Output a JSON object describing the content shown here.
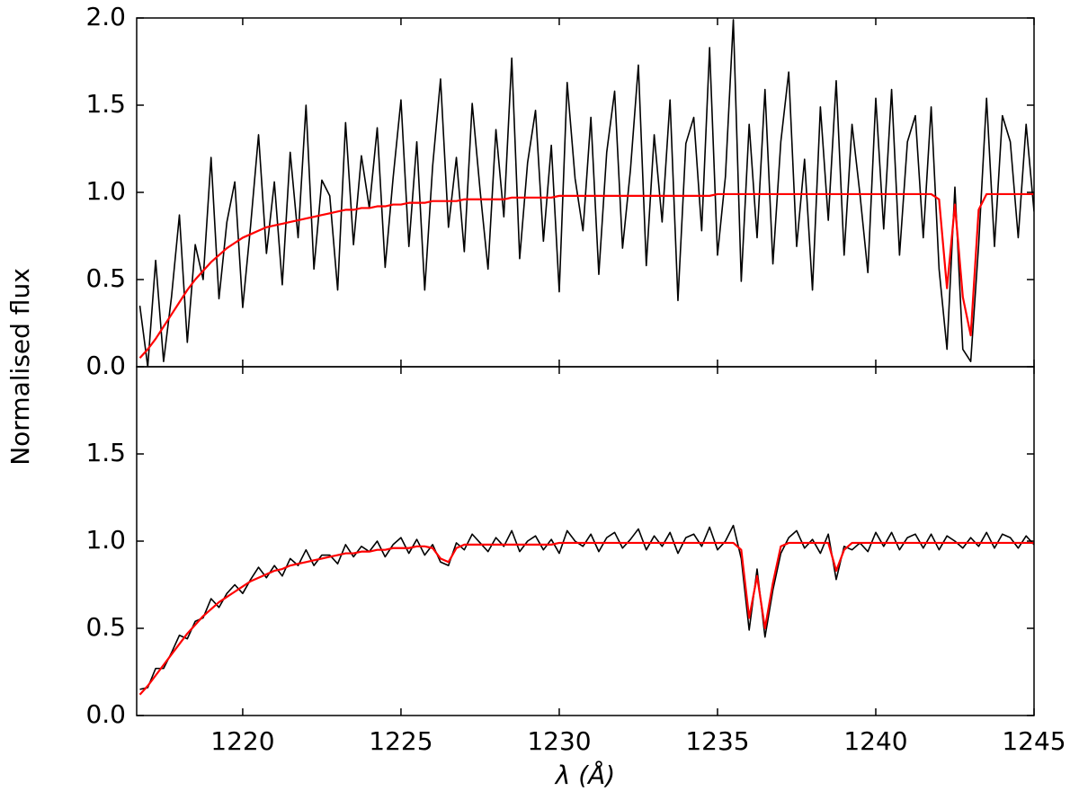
{
  "chart_data": [
    {
      "type": "line",
      "ylabel": "Normalised flux",
      "xlim": [
        1216.65,
        1245
      ],
      "ylim": [
        0,
        2
      ],
      "yticks": [
        {
          "value": 0,
          "label": "0.0"
        },
        {
          "value": 0.5,
          "label": "0.5"
        },
        {
          "value": 1,
          "label": "1.0"
        },
        {
          "value": 1.5,
          "label": "1.5"
        },
        {
          "value": 2,
          "label": "2.0"
        }
      ],
      "x": [
        1216.75,
        1217,
        1217.25,
        1217.5,
        1217.75,
        1218,
        1218.25,
        1218.5,
        1218.75,
        1219,
        1219.25,
        1219.5,
        1219.75,
        1220,
        1220.25,
        1220.5,
        1220.75,
        1221,
        1221.25,
        1221.5,
        1221.75,
        1222,
        1222.25,
        1222.5,
        1222.75,
        1223,
        1223.25,
        1223.5,
        1223.75,
        1224,
        1224.25,
        1224.5,
        1224.75,
        1225,
        1225.25,
        1225.5,
        1225.75,
        1226,
        1226.25,
        1226.5,
        1226.75,
        1227,
        1227.25,
        1227.5,
        1227.75,
        1228,
        1228.25,
        1228.5,
        1228.75,
        1229,
        1229.25,
        1229.5,
        1229.75,
        1230,
        1230.25,
        1230.5,
        1230.75,
        1231,
        1231.25,
        1231.5,
        1231.75,
        1232,
        1232.25,
        1232.5,
        1232.75,
        1233,
        1233.25,
        1233.5,
        1233.75,
        1234,
        1234.25,
        1234.5,
        1234.75,
        1235,
        1235.25,
        1235.5,
        1235.75,
        1236,
        1236.25,
        1236.5,
        1236.75,
        1237,
        1237.25,
        1237.5,
        1237.75,
        1238,
        1238.25,
        1238.5,
        1238.75,
        1239,
        1239.25,
        1239.5,
        1239.75,
        1240,
        1240.25,
        1240.5,
        1240.75,
        1241,
        1241.25,
        1241.5,
        1241.75,
        1242,
        1242.25,
        1242.5,
        1242.75,
        1243,
        1243.25,
        1243.5,
        1243.75,
        1244,
        1244.25,
        1244.5,
        1244.75,
        1245
      ],
      "series": [
        {
          "color": "#000000",
          "values": [
            0.35,
            0.0,
            0.61,
            0.03,
            0.4,
            0.87,
            0.14,
            0.7,
            0.5,
            1.2,
            0.39,
            0.83,
            1.06,
            0.34,
            0.81,
            1.33,
            0.65,
            1.06,
            0.47,
            1.23,
            0.74,
            1.5,
            0.56,
            1.07,
            0.98,
            0.44,
            1.4,
            0.7,
            1.21,
            0.91,
            1.37,
            0.57,
            1.08,
            1.53,
            0.69,
            1.29,
            0.44,
            1.15,
            1.65,
            0.8,
            1.2,
            0.66,
            1.51,
            1.01,
            0.56,
            1.36,
            0.86,
            1.77,
            0.62,
            1.17,
            1.47,
            0.72,
            1.27,
            0.43,
            1.63,
            1.08,
            0.78,
            1.43,
            0.53,
            1.23,
            1.58,
            0.68,
            1.13,
            1.73,
            0.58,
            1.33,
            0.83,
            1.53,
            0.38,
            1.28,
            1.43,
            0.78,
            1.83,
            0.64,
            1.09,
            1.99,
            0.49,
            1.39,
            0.74,
            1.59,
            0.59,
            1.29,
            1.69,
            0.69,
            1.19,
            0.44,
            1.49,
            0.84,
            1.64,
            0.64,
            1.39,
            0.99,
            0.54,
            1.54,
            0.79,
            1.59,
            0.64,
            1.29,
            1.44,
            0.74,
            1.49,
            0.56,
            0.1,
            1.03,
            0.1,
            0.03,
            0.7,
            1.54,
            0.69,
            1.44,
            1.29,
            0.74,
            1.39,
            0.89
          ]
        },
        {
          "color": "#ff0000",
          "values": [
            0.05,
            0.1,
            0.16,
            0.23,
            0.3,
            0.37,
            0.44,
            0.5,
            0.55,
            0.6,
            0.64,
            0.68,
            0.71,
            0.74,
            0.76,
            0.78,
            0.8,
            0.81,
            0.82,
            0.83,
            0.84,
            0.85,
            0.86,
            0.87,
            0.88,
            0.89,
            0.9,
            0.9,
            0.91,
            0.91,
            0.92,
            0.92,
            0.93,
            0.93,
            0.94,
            0.94,
            0.94,
            0.95,
            0.95,
            0.95,
            0.95,
            0.96,
            0.96,
            0.96,
            0.96,
            0.96,
            0.96,
            0.97,
            0.97,
            0.97,
            0.97,
            0.97,
            0.97,
            0.98,
            0.98,
            0.98,
            0.98,
            0.98,
            0.98,
            0.98,
            0.98,
            0.98,
            0.98,
            0.98,
            0.98,
            0.98,
            0.98,
            0.98,
            0.98,
            0.98,
            0.98,
            0.98,
            0.98,
            0.99,
            0.99,
            0.99,
            0.99,
            0.99,
            0.99,
            0.99,
            0.99,
            0.99,
            0.99,
            0.99,
            0.99,
            0.99,
            0.99,
            0.99,
            0.99,
            0.99,
            0.99,
            0.99,
            0.99,
            0.99,
            0.99,
            0.99,
            0.99,
            0.99,
            0.99,
            0.99,
            0.99,
            0.96,
            0.45,
            0.93,
            0.4,
            0.18,
            0.9,
            0.99,
            0.99,
            0.99,
            0.99,
            0.99,
            0.99,
            0.99
          ]
        }
      ]
    },
    {
      "type": "line",
      "xlabel": "λ (Å)",
      "xlim": [
        1216.65,
        1245
      ],
      "xticks": [
        1220,
        1225,
        1230,
        1235,
        1240,
        1245
      ],
      "ylim": [
        0,
        2
      ],
      "yticks": [
        {
          "value": 0,
          "label": "0.0"
        },
        {
          "value": 0.5,
          "label": "0.5"
        },
        {
          "value": 1,
          "label": "1.0"
        },
        {
          "value": 1.5,
          "label": "1.5"
        }
      ],
      "x": [
        1216.75,
        1217,
        1217.25,
        1217.5,
        1217.75,
        1218,
        1218.25,
        1218.5,
        1218.75,
        1219,
        1219.25,
        1219.5,
        1219.75,
        1220,
        1220.25,
        1220.5,
        1220.75,
        1221,
        1221.25,
        1221.5,
        1221.75,
        1222,
        1222.25,
        1222.5,
        1222.75,
        1223,
        1223.25,
        1223.5,
        1223.75,
        1224,
        1224.25,
        1224.5,
        1224.75,
        1225,
        1225.25,
        1225.5,
        1225.75,
        1226,
        1226.25,
        1226.5,
        1226.75,
        1227,
        1227.25,
        1227.5,
        1227.75,
        1228,
        1228.25,
        1228.5,
        1228.75,
        1229,
        1229.25,
        1229.5,
        1229.75,
        1230,
        1230.25,
        1230.5,
        1230.75,
        1231,
        1231.25,
        1231.5,
        1231.75,
        1232,
        1232.25,
        1232.5,
        1232.75,
        1233,
        1233.25,
        1233.5,
        1233.75,
        1234,
        1234.25,
        1234.5,
        1234.75,
        1235,
        1235.25,
        1235.5,
        1235.75,
        1236,
        1236.25,
        1236.5,
        1236.75,
        1237,
        1237.25,
        1237.5,
        1237.75,
        1238,
        1238.25,
        1238.5,
        1238.75,
        1239,
        1239.25,
        1239.5,
        1239.75,
        1240,
        1240.25,
        1240.5,
        1240.75,
        1241,
        1241.25,
        1241.5,
        1241.75,
        1242,
        1242.25,
        1242.5,
        1242.75,
        1243,
        1243.25,
        1243.5,
        1243.75,
        1244,
        1244.25,
        1244.5,
        1244.75,
        1245
      ],
      "series": [
        {
          "color": "#000000",
          "values": [
            0.15,
            0.16,
            0.27,
            0.27,
            0.36,
            0.46,
            0.44,
            0.54,
            0.56,
            0.67,
            0.62,
            0.7,
            0.75,
            0.7,
            0.78,
            0.85,
            0.79,
            0.86,
            0.8,
            0.9,
            0.86,
            0.95,
            0.86,
            0.92,
            0.92,
            0.87,
            0.98,
            0.91,
            0.97,
            0.94,
            1.0,
            0.91,
            0.98,
            1.02,
            0.93,
            1.01,
            0.92,
            0.98,
            0.88,
            0.86,
            0.99,
            0.95,
            1.04,
            0.99,
            0.94,
            1.02,
            0.97,
            1.06,
            0.94,
            1.0,
            1.03,
            0.95,
            1.01,
            0.93,
            1.06,
            1.0,
            0.97,
            1.04,
            0.94,
            1.02,
            1.05,
            0.96,
            1.01,
            1.07,
            0.95,
            1.03,
            0.97,
            1.05,
            0.93,
            1.02,
            1.04,
            0.97,
            1.08,
            0.95,
            1.0,
            1.09,
            0.9,
            0.49,
            0.84,
            0.45,
            0.72,
            0.93,
            1.02,
            1.06,
            0.96,
            1.01,
            0.93,
            1.04,
            0.78,
            0.97,
            0.95,
            0.99,
            0.94,
            1.05,
            0.97,
            1.05,
            0.95,
            1.02,
            1.04,
            0.96,
            1.04,
            0.95,
            1.03,
            1.0,
            0.96,
            1.02,
            0.97,
            1.05,
            0.96,
            1.04,
            1.02,
            0.96,
            1.03,
            0.98
          ]
        },
        {
          "color": "#ff0000",
          "values": [
            0.12,
            0.17,
            0.23,
            0.29,
            0.35,
            0.41,
            0.47,
            0.52,
            0.57,
            0.61,
            0.65,
            0.68,
            0.71,
            0.74,
            0.77,
            0.79,
            0.81,
            0.83,
            0.84,
            0.86,
            0.87,
            0.88,
            0.89,
            0.9,
            0.91,
            0.92,
            0.93,
            0.93,
            0.94,
            0.94,
            0.95,
            0.95,
            0.96,
            0.96,
            0.96,
            0.97,
            0.97,
            0.96,
            0.9,
            0.88,
            0.96,
            0.98,
            0.98,
            0.98,
            0.98,
            0.98,
            0.98,
            0.98,
            0.98,
            0.98,
            0.98,
            0.98,
            0.98,
            0.99,
            0.99,
            0.99,
            0.99,
            0.99,
            0.99,
            0.99,
            0.99,
            0.99,
            0.99,
            0.99,
            0.99,
            0.99,
            0.99,
            0.99,
            0.99,
            0.99,
            0.99,
            0.99,
            0.99,
            0.99,
            0.99,
            0.99,
            0.95,
            0.56,
            0.8,
            0.5,
            0.76,
            0.97,
            0.99,
            0.99,
            0.99,
            0.99,
            0.99,
            0.99,
            0.83,
            0.95,
            0.99,
            0.99,
            0.99,
            0.99,
            0.99,
            0.99,
            0.99,
            0.99,
            0.99,
            0.99,
            0.99,
            0.99,
            0.99,
            0.99,
            0.99,
            0.99,
            0.99,
            0.99,
            0.99,
            0.99,
            0.99,
            0.99,
            0.99,
            0.99
          ]
        }
      ]
    }
  ]
}
